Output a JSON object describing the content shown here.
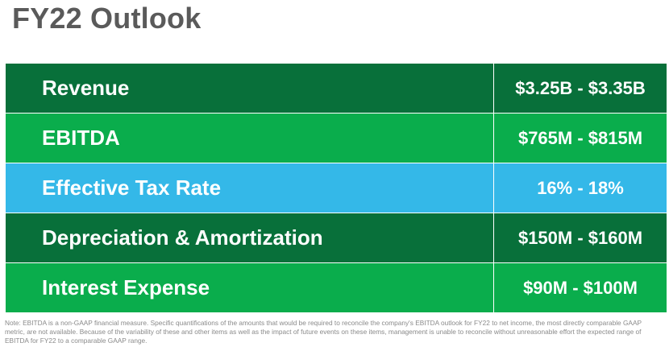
{
  "title": "FY22 Outlook",
  "colors": {
    "title_gray": "#5a5a5a",
    "dark_green": "#08703a",
    "green": "#0aad4c",
    "blue": "#34b8e8",
    "note_gray": "#8a8a8a"
  },
  "rows": [
    {
      "label": "Revenue",
      "value": "$3.25B - $3.35B",
      "color": "dark_green"
    },
    {
      "label": "EBITDA",
      "value": "$765M - $815M",
      "color": "green"
    },
    {
      "label": "Effective Tax Rate",
      "value": "16% - 18%",
      "color": "blue"
    },
    {
      "label": "Depreciation & Amortization",
      "value": "$150M - $160M",
      "color": "dark_green"
    },
    {
      "label": "Interest Expense",
      "value": "$90M - $100M",
      "color": "green"
    }
  ],
  "note": "Note: EBITDA is a non-GAAP financial measure. Specific quantifications of the amounts that would be required to reconcile the company's EBITDA outlook for FY22 to net income, the most directly comparable GAAP metric, are not available. Because of the variability of these and other items as well as the impact of future events on these items, management is unable to reconcile without unreasonable effort the expected range of EBITDA for FY22 to a comparable GAAP range."
}
